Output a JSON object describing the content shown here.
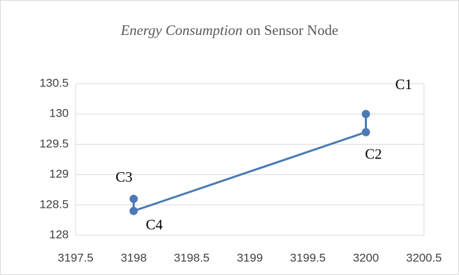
{
  "chart_data": {
    "type": "line",
    "title": [
      "Energy Consumption",
      "on  Sensor Node"
    ],
    "series": [
      {
        "color": "#4a7ab5",
        "x": [
          3200,
          3200,
          3198,
          3198
        ],
        "y": [
          130,
          129.7,
          128.4,
          128.6
        ],
        "point_labels": [
          "C1",
          "C2",
          "C4",
          "C3"
        ]
      }
    ],
    "xlim": [
      3197.5,
      3200.5
    ],
    "xticks": [
      3197.5,
      3198,
      3198.5,
      3199,
      3199.5,
      3200,
      3200.5
    ],
    "ylim": [
      128,
      130.5
    ],
    "yticks": [
      128,
      128.5,
      129,
      129.5,
      130,
      130.5
    ],
    "grid": true
  }
}
